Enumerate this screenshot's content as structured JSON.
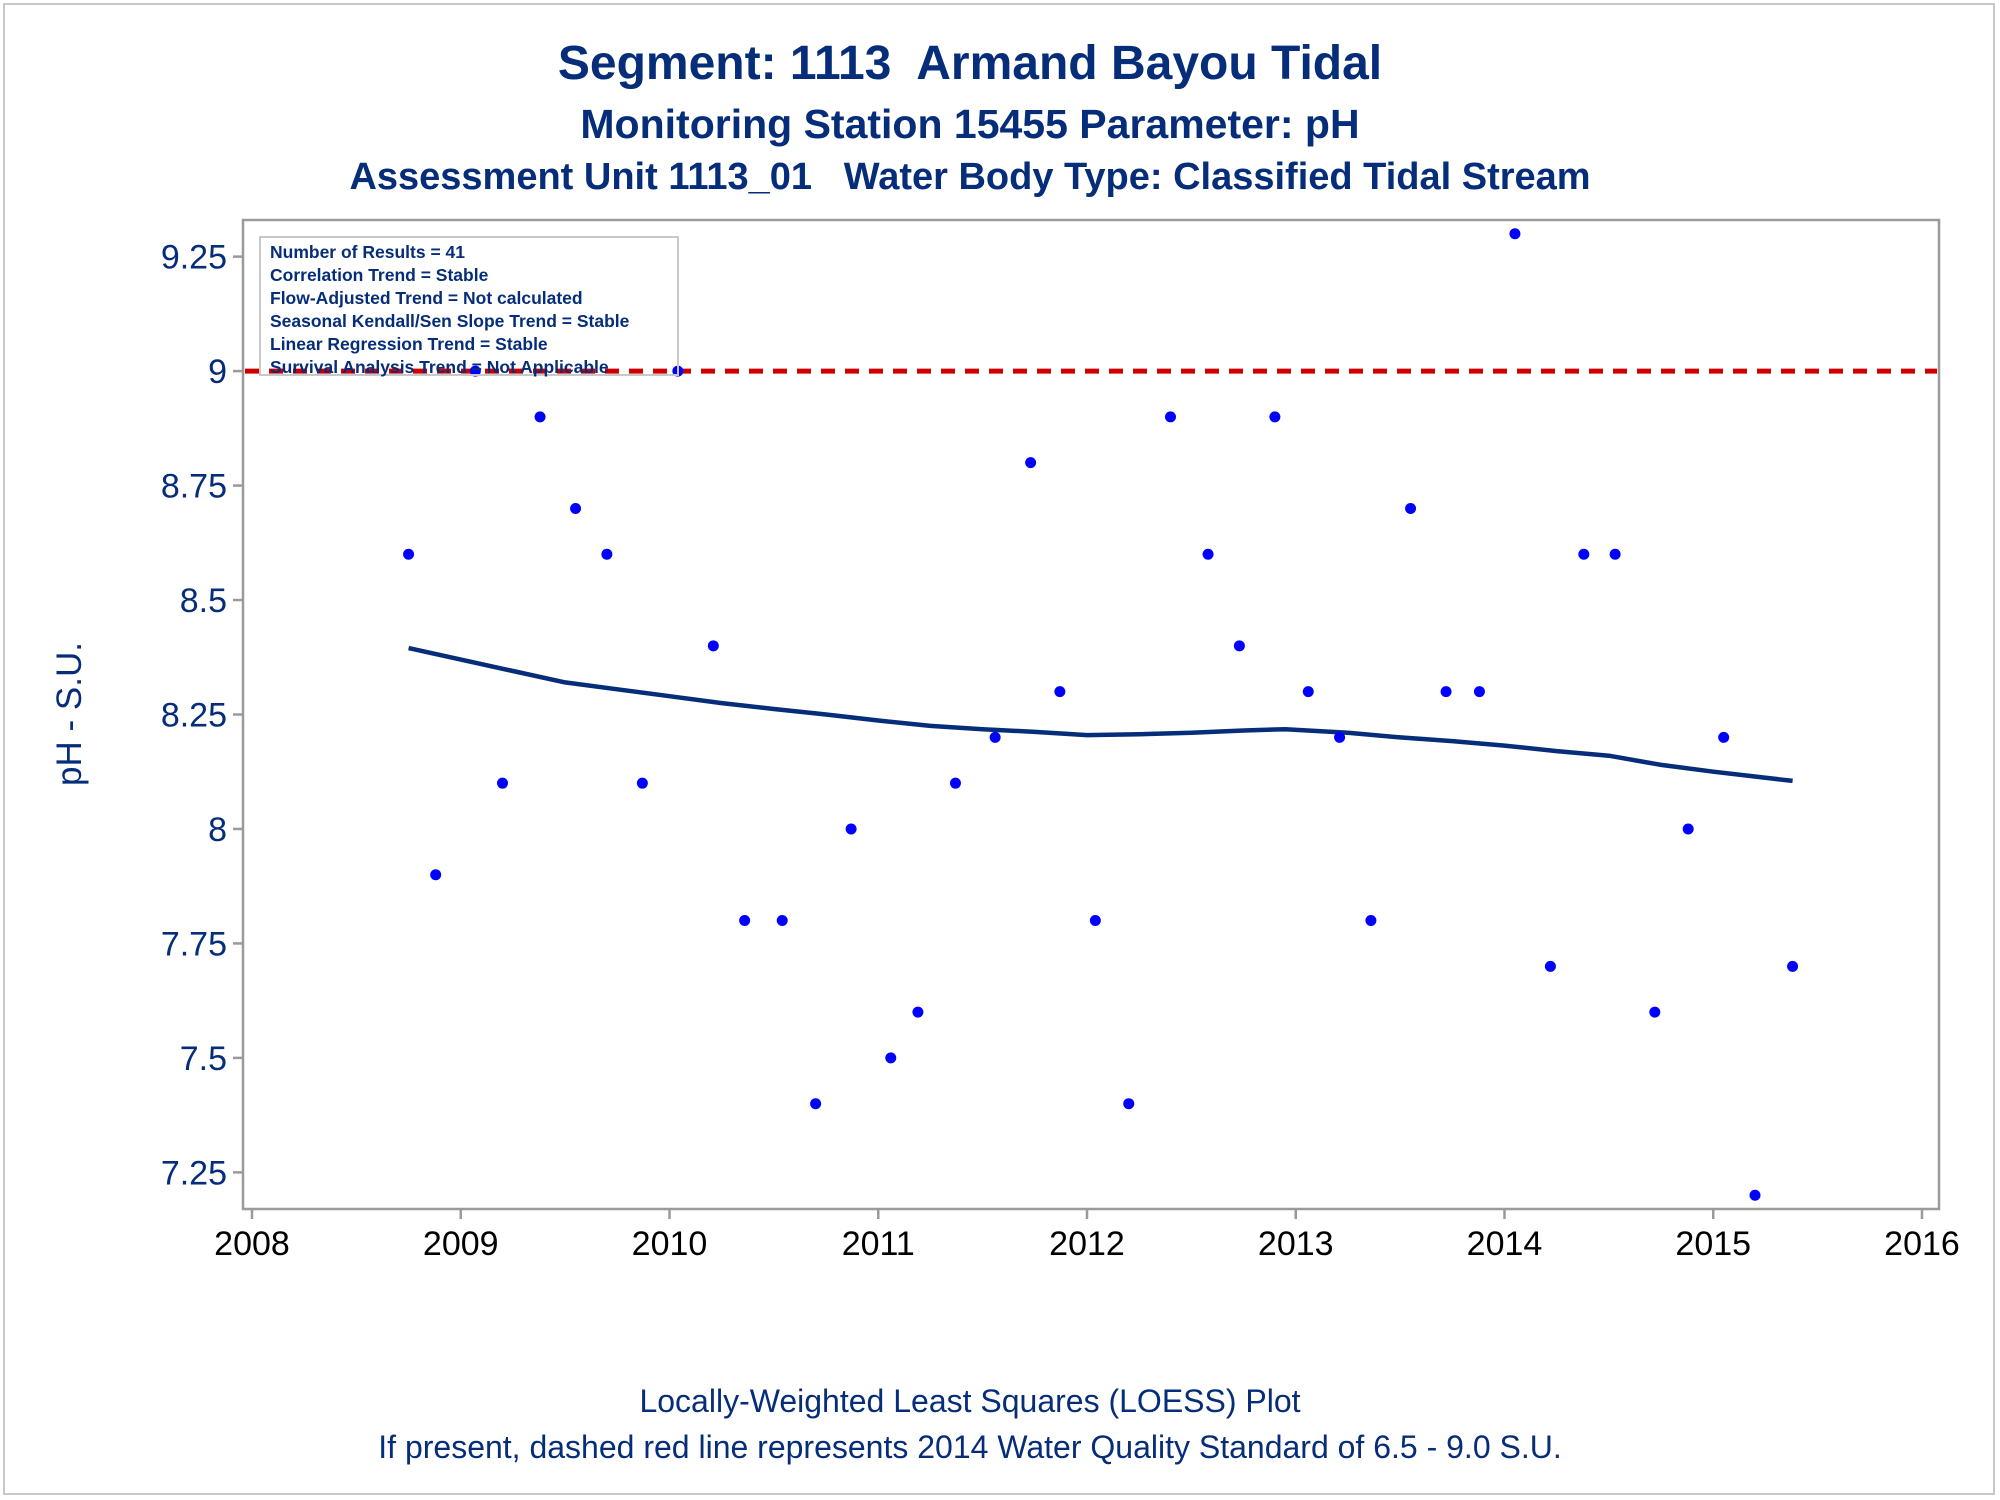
{
  "titles": {
    "line1": "Segment: 1113  Armand Bayou Tidal",
    "line2": "Monitoring Station 15455 Parameter: pH",
    "line3": "Assessment Unit 1113_01   Water Body Type: Classified Tidal Stream"
  },
  "footnotes": {
    "line1": "Locally-Weighted Least Squares (LOESS) Plot",
    "line2": "If present, dashed red line represents 2014 Water Quality Standard of 6.5 - 9.0 S.U."
  },
  "stats": [
    "Number of Results = 41",
    "Correlation Trend = Stable",
    "Flow-Adjusted Trend = Not calculated",
    "Seasonal Kendall/Sen Slope Trend = Stable",
    "Linear Regression Trend = Stable",
    "Survival Analysis Trend = Not Applicable"
  ],
  "colors": {
    "text": "#062d7a",
    "points": "#0000ff",
    "loess": "#062d7a",
    "standard_line": "#cc0000",
    "axis": "#9a9a9a"
  },
  "chart_data": {
    "type": "scatter",
    "title": "Segment: 1113  Armand Bayou Tidal",
    "xlabel": "",
    "ylabel": "pH - S.U.",
    "xlim": [
      2008,
      2016
    ],
    "ylim": [
      7.17,
      9.33
    ],
    "x_ticks": [
      2008,
      2009,
      2010,
      2011,
      2012,
      2013,
      2014,
      2015,
      2016
    ],
    "x_tick_labels": [
      "2008",
      "2009",
      "2010",
      "2011",
      "2012",
      "2013",
      "2014",
      "2015",
      "2016"
    ],
    "y_ticks": [
      7.25,
      7.5,
      7.75,
      8,
      8.25,
      8.5,
      8.75,
      9,
      9.25
    ],
    "y_tick_labels": [
      "7.25",
      "7.5",
      "7.75",
      "8",
      "8.25",
      "8.5",
      "8.75",
      "9",
      "9.25"
    ],
    "grid": false,
    "legend": "none",
    "points": [
      {
        "x": 2008.75,
        "y": 8.6
      },
      {
        "x": 2008.88,
        "y": 7.9
      },
      {
        "x": 2009.07,
        "y": 9.0
      },
      {
        "x": 2009.2,
        "y": 8.1
      },
      {
        "x": 2009.38,
        "y": 8.9
      },
      {
        "x": 2009.55,
        "y": 8.7
      },
      {
        "x": 2009.7,
        "y": 8.6
      },
      {
        "x": 2009.87,
        "y": 8.1
      },
      {
        "x": 2010.04,
        "y": 9.0
      },
      {
        "x": 2010.21,
        "y": 8.4
      },
      {
        "x": 2010.36,
        "y": 7.8
      },
      {
        "x": 2010.54,
        "y": 7.8
      },
      {
        "x": 2010.7,
        "y": 7.4
      },
      {
        "x": 2010.87,
        "y": 8.0
      },
      {
        "x": 2011.06,
        "y": 7.5
      },
      {
        "x": 2011.19,
        "y": 7.6
      },
      {
        "x": 2011.37,
        "y": 8.1
      },
      {
        "x": 2011.56,
        "y": 8.2
      },
      {
        "x": 2011.73,
        "y": 8.8
      },
      {
        "x": 2011.87,
        "y": 8.3
      },
      {
        "x": 2012.04,
        "y": 7.8
      },
      {
        "x": 2012.2,
        "y": 7.4
      },
      {
        "x": 2012.4,
        "y": 8.9
      },
      {
        "x": 2012.58,
        "y": 8.6
      },
      {
        "x": 2012.73,
        "y": 8.4
      },
      {
        "x": 2012.9,
        "y": 8.9
      },
      {
        "x": 2013.06,
        "y": 8.3
      },
      {
        "x": 2013.21,
        "y": 8.2
      },
      {
        "x": 2013.36,
        "y": 7.8
      },
      {
        "x": 2013.55,
        "y": 8.7
      },
      {
        "x": 2013.72,
        "y": 8.3
      },
      {
        "x": 2013.88,
        "y": 8.3
      },
      {
        "x": 2014.05,
        "y": 9.3
      },
      {
        "x": 2014.22,
        "y": 7.7
      },
      {
        "x": 2014.38,
        "y": 8.6
      },
      {
        "x": 2014.53,
        "y": 8.6
      },
      {
        "x": 2014.72,
        "y": 7.6
      },
      {
        "x": 2014.88,
        "y": 8.0
      },
      {
        "x": 2015.05,
        "y": 8.2
      },
      {
        "x": 2015.2,
        "y": 7.2
      },
      {
        "x": 2015.38,
        "y": 7.7
      }
    ],
    "loess": [
      {
        "x": 2008.75,
        "y": 8.395
      },
      {
        "x": 2009.0,
        "y": 8.37
      },
      {
        "x": 2009.25,
        "y": 8.345
      },
      {
        "x": 2009.5,
        "y": 8.32
      },
      {
        "x": 2009.75,
        "y": 8.305
      },
      {
        "x": 2010.0,
        "y": 8.29
      },
      {
        "x": 2010.25,
        "y": 8.275
      },
      {
        "x": 2010.5,
        "y": 8.262
      },
      {
        "x": 2010.75,
        "y": 8.25
      },
      {
        "x": 2011.0,
        "y": 8.237
      },
      {
        "x": 2011.25,
        "y": 8.225
      },
      {
        "x": 2011.5,
        "y": 8.218
      },
      {
        "x": 2011.75,
        "y": 8.212
      },
      {
        "x": 2012.0,
        "y": 8.205
      },
      {
        "x": 2012.25,
        "y": 8.207
      },
      {
        "x": 2012.5,
        "y": 8.21
      },
      {
        "x": 2012.75,
        "y": 8.215
      },
      {
        "x": 2012.95,
        "y": 8.218
      },
      {
        "x": 2013.25,
        "y": 8.21
      },
      {
        "x": 2013.5,
        "y": 8.2
      },
      {
        "x": 2013.75,
        "y": 8.192
      },
      {
        "x": 2014.0,
        "y": 8.182
      },
      {
        "x": 2014.25,
        "y": 8.17
      },
      {
        "x": 2014.5,
        "y": 8.16
      },
      {
        "x": 2014.75,
        "y": 8.14
      },
      {
        "x": 2015.0,
        "y": 8.125
      },
      {
        "x": 2015.38,
        "y": 8.105
      }
    ],
    "reference_line": {
      "y": 9.0,
      "style": "dashed"
    }
  }
}
